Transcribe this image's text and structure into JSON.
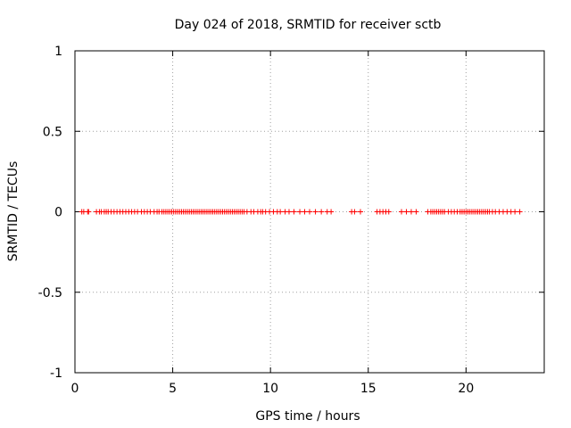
{
  "chart_data": {
    "type": "scatter",
    "title": "Day 024 of 2018, SRMTID for receiver sctb",
    "xlabel": "GPS time / hours",
    "ylabel": "SRMTID / TECUs",
    "xlim": [
      0,
      24
    ],
    "ylim": [
      -1,
      1
    ],
    "xticks": [
      0,
      5,
      10,
      15,
      20
    ],
    "yticks": [
      -1,
      -0.5,
      0,
      0.5,
      1
    ],
    "xtick_labels": [
      "0",
      "5",
      "10",
      "15",
      "20"
    ],
    "ytick_labels": [
      "-1",
      "-0.5",
      "0",
      "0.5",
      "1"
    ],
    "grid": true,
    "marker": "plus",
    "series": [
      {
        "name": "SRMTID",
        "color": "#ff0000",
        "x": [
          0.35,
          0.45,
          0.65,
          0.7,
          1.1,
          1.25,
          1.35,
          1.5,
          1.6,
          1.7,
          1.85,
          2.0,
          2.15,
          2.3,
          2.45,
          2.6,
          2.75,
          2.9,
          3.05,
          3.2,
          3.4,
          3.55,
          3.7,
          3.85,
          4.05,
          4.2,
          4.3,
          4.45,
          4.55,
          4.65,
          4.75,
          4.85,
          4.95,
          5.05,
          5.15,
          5.25,
          5.35,
          5.45,
          5.55,
          5.65,
          5.75,
          5.85,
          5.95,
          6.05,
          6.15,
          6.25,
          6.35,
          6.45,
          6.55,
          6.65,
          6.75,
          6.85,
          6.95,
          7.05,
          7.15,
          7.25,
          7.35,
          7.45,
          7.55,
          7.65,
          7.75,
          7.85,
          7.95,
          8.05,
          8.15,
          8.25,
          8.35,
          8.45,
          8.55,
          8.65,
          8.8,
          9.0,
          9.15,
          9.35,
          9.5,
          9.6,
          9.75,
          9.95,
          10.15,
          10.35,
          10.5,
          10.75,
          10.95,
          11.2,
          11.5,
          11.75,
          12.0,
          12.3,
          12.6,
          12.9,
          13.1,
          14.15,
          14.3,
          14.6,
          15.45,
          15.6,
          15.75,
          15.9,
          16.05,
          16.7,
          16.95,
          17.2,
          17.45,
          18.05,
          18.2,
          18.3,
          18.4,
          18.5,
          18.6,
          18.7,
          18.8,
          18.9,
          19.1,
          19.25,
          19.4,
          19.55,
          19.7,
          19.8,
          19.9,
          20.0,
          20.1,
          20.2,
          20.3,
          20.4,
          20.5,
          20.6,
          20.7,
          20.8,
          20.9,
          21.0,
          21.1,
          21.2,
          21.35,
          21.5,
          21.7,
          21.9,
          22.1,
          22.3,
          22.5,
          22.75
        ],
        "y": [
          0,
          0,
          0,
          0,
          0,
          0,
          0,
          0,
          0,
          0,
          0,
          0,
          0,
          0,
          0,
          0,
          0,
          0,
          0,
          0,
          0,
          0,
          0,
          0,
          0,
          0,
          0,
          0,
          0,
          0,
          0,
          0,
          0,
          0,
          0,
          0,
          0,
          0,
          0,
          0,
          0,
          0,
          0,
          0,
          0,
          0,
          0,
          0,
          0,
          0,
          0,
          0,
          0,
          0,
          0,
          0,
          0,
          0,
          0,
          0,
          0,
          0,
          0,
          0,
          0,
          0,
          0,
          0,
          0,
          0,
          0,
          0,
          0,
          0,
          0,
          0,
          0,
          0,
          0,
          0,
          0,
          0,
          0,
          0,
          0,
          0,
          0,
          0,
          0,
          0,
          0,
          0,
          0,
          0,
          0,
          0,
          0,
          0,
          0,
          0,
          0,
          0,
          0,
          0,
          0,
          0,
          0,
          0,
          0,
          0,
          0,
          0,
          0,
          0,
          0,
          0,
          0,
          0,
          0,
          0,
          0,
          0,
          0,
          0,
          0,
          0,
          0,
          0,
          0,
          0,
          0,
          0,
          0,
          0,
          0,
          0,
          0,
          0,
          0,
          0
        ]
      }
    ]
  }
}
